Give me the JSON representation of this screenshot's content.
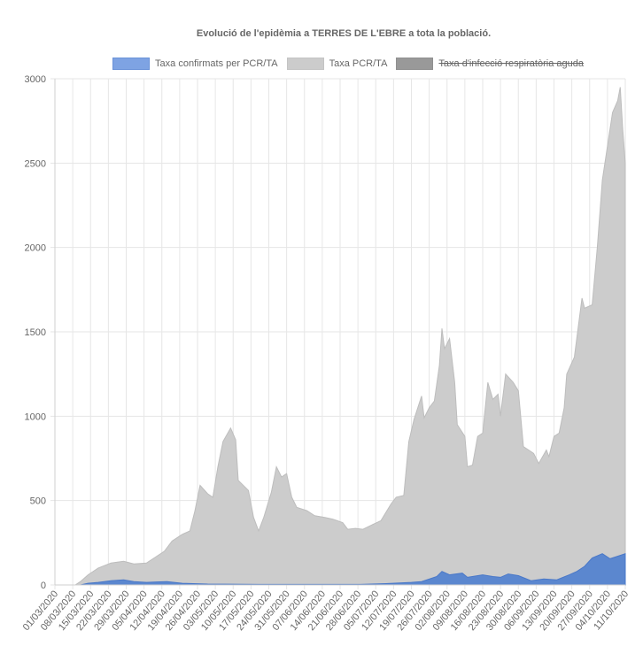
{
  "chart_data": {
    "type": "area",
    "title": "Evolució de l'epidèmia a TERRES DE L'EBRE a tota la població.",
    "xlabel": "",
    "ylabel": "",
    "ylim": [
      0,
      3000
    ],
    "yticks": [
      "0",
      "500",
      "1000",
      "1500",
      "2000",
      "2500",
      "3000"
    ],
    "ytick_values": [
      0,
      500,
      1000,
      1500,
      2000,
      2500,
      3000
    ],
    "grid": true,
    "legend_position": "top",
    "start_date": "01/03/2020",
    "x_unit": "days since 01/03/2020",
    "xlim": [
      0,
      224
    ],
    "xtick_labels": [
      "01/03/2020",
      "08/03/2020",
      "15/03/2020",
      "22/03/2020",
      "29/03/2020",
      "05/04/2020",
      "12/04/2020",
      "19/04/2020",
      "26/04/2020",
      "03/05/2020",
      "10/05/2020",
      "17/05/2020",
      "24/05/2020",
      "31/05/2020",
      "07/06/2020",
      "14/06/2020",
      "21/06/2020",
      "28/06/2020",
      "05/07/2020",
      "12/07/2020",
      "19/07/2020",
      "26/07/2020",
      "02/08/2020",
      "09/08/2020",
      "16/08/2020",
      "23/08/2020",
      "30/08/2020",
      "06/09/2020",
      "13/09/2020",
      "20/09/2020",
      "27/09/2020",
      "04/10/2020",
      "11/10/2020"
    ],
    "series": [
      {
        "name": "Taxa PCR/TA",
        "color": "#cccccc",
        "hidden": false,
        "x": [
          0,
          8,
          10,
          13,
          17,
          22,
          27,
          31,
          36,
          39,
          43,
          46,
          50,
          53,
          55,
          57,
          60,
          62,
          64,
          66,
          69,
          71,
          72,
          76,
          78,
          80,
          82,
          85,
          87,
          89,
          91,
          93,
          95,
          99,
          102,
          106,
          109,
          113,
          115,
          118,
          121,
          125,
          128,
          132,
          134,
          137,
          139,
          141,
          144,
          145,
          147,
          149,
          151,
          152,
          153,
          155,
          157,
          158,
          161,
          162,
          164,
          166,
          168,
          170,
          172,
          174,
          175,
          177,
          180,
          182,
          184,
          186,
          188,
          190,
          193,
          194,
          196,
          198,
          200,
          201,
          204,
          207,
          208,
          211,
          213,
          215,
          219,
          221,
          222,
          223,
          224
        ],
        "values": [
          0,
          0,
          20,
          60,
          100,
          130,
          140,
          125,
          130,
          160,
          200,
          260,
          300,
          320,
          440,
          590,
          540,
          520,
          700,
          850,
          930,
          860,
          620,
          560,
          400,
          320,
          400,
          550,
          700,
          640,
          660,
          520,
          460,
          440,
          410,
          400,
          390,
          370,
          330,
          335,
          330,
          360,
          380,
          480,
          520,
          530,
          850,
          980,
          1120,
          990,
          1050,
          1090,
          1300,
          1520,
          1400,
          1460,
          1200,
          950,
          880,
          700,
          710,
          880,
          900,
          1200,
          1100,
          1130,
          1000,
          1250,
          1200,
          1150,
          820,
          800,
          780,
          720,
          800,
          760,
          880,
          900,
          1050,
          1250,
          1350,
          1700,
          1640,
          1660,
          2000,
          2400,
          2800,
          2870,
          2950,
          2700,
          2500
        ]
      },
      {
        "name": "Taxa confirmats per PCR/TA",
        "color": "#5b87cf",
        "hidden": false,
        "x": [
          0,
          10,
          13,
          17,
          22,
          27,
          31,
          36,
          40,
          44,
          50,
          60,
          80,
          120,
          130,
          140,
          144,
          150,
          152,
          155,
          160,
          162,
          168,
          172,
          175,
          178,
          182,
          187,
          192,
          197,
          202,
          205,
          208,
          211,
          215,
          218,
          222,
          224
        ],
        "values": [
          0,
          0,
          10,
          15,
          25,
          30,
          20,
          15,
          18,
          20,
          10,
          5,
          3,
          3,
          8,
          15,
          20,
          50,
          80,
          60,
          70,
          45,
          60,
          50,
          45,
          65,
          55,
          25,
          35,
          30,
          60,
          80,
          110,
          160,
          185,
          155,
          175,
          185
        ]
      },
      {
        "name": "Taxa d'infecció respiratòria aguda",
        "color": "#999999",
        "hidden": true,
        "x": [],
        "values": []
      }
    ]
  }
}
